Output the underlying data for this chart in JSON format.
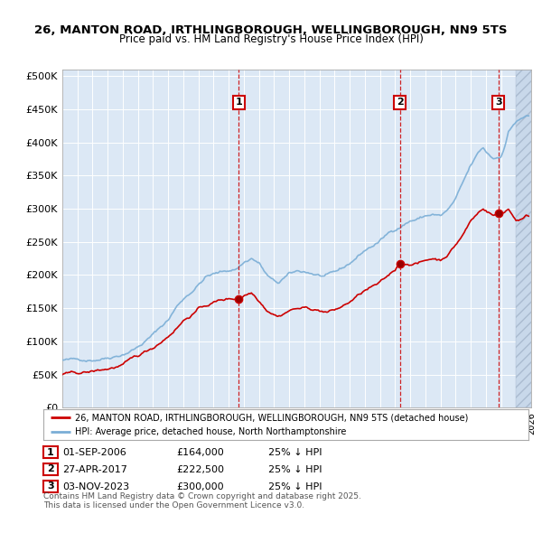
{
  "title_line1": "26, MANTON ROAD, IRTHLINGBOROUGH, WELLINGBOROUGH, NN9 5TS",
  "title_line2": "Price paid vs. HM Land Registry's House Price Index (HPI)",
  "background_color": "#ffffff",
  "plot_background": "#dce8f5",
  "hpi_color": "#7aaed6",
  "price_color": "#cc0000",
  "vline_color": "#cc0000",
  "transactions": [
    {
      "num": 1,
      "date": "01-SEP-2006",
      "price": 164000,
      "hpi_note": "25% ↓ HPI",
      "x_year": 2006.67
    },
    {
      "num": 2,
      "date": "27-APR-2017",
      "price": 222500,
      "hpi_note": "25% ↓ HPI",
      "x_year": 2017.32
    },
    {
      "num": 3,
      "date": "03-NOV-2023",
      "price": 300000,
      "hpi_note": "25% ↓ HPI",
      "x_year": 2023.84
    }
  ],
  "legend_label_price": "26, MANTON ROAD, IRTHLINGBOROUGH, WELLINGBOROUGH, NN9 5TS (detached house)",
  "legend_label_hpi": "HPI: Average price, detached house, North Northamptonshire",
  "footer_line1": "Contains HM Land Registry data © Crown copyright and database right 2025.",
  "footer_line2": "This data is licensed under the Open Government Licence v3.0.",
  "xlim": [
    1995.0,
    2025.8
  ],
  "ylim": [
    0,
    510000
  ],
  "yticks": [
    0,
    50000,
    100000,
    150000,
    200000,
    250000,
    300000,
    350000,
    400000,
    450000,
    500000
  ]
}
